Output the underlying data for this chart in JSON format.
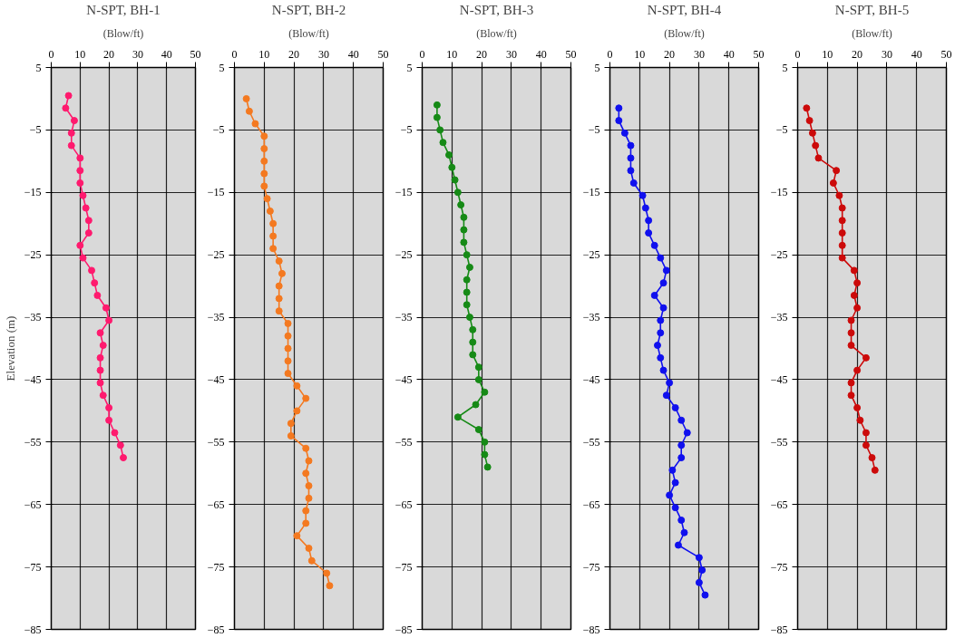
{
  "chart_data": [
    {
      "type": "line",
      "title": "N-SPT, BH-1",
      "subtitle": "(Blow/ft)",
      "ylabel": "Elevation (m)",
      "xlim": [
        0,
        50
      ],
      "xticks": [
        0,
        10,
        20,
        30,
        40,
        50
      ],
      "ylim": [
        -85,
        5
      ],
      "yticks": [
        5,
        -5,
        -15,
        -25,
        -35,
        -45,
        -55,
        -65,
        -75,
        -85
      ],
      "grid": true,
      "marker": "circle",
      "line_style": "solid",
      "series": [
        {
          "color": "#ff1a6e",
          "x": [
            6,
            5,
            8,
            7,
            7,
            10,
            10,
            10,
            11,
            12,
            13,
            13,
            10,
            11,
            14,
            15,
            16,
            19,
            20,
            17,
            18,
            17,
            17,
            17,
            18,
            20,
            20,
            22,
            24,
            25
          ],
          "values": [
            0.5,
            -1.5,
            -3.5,
            -5.5,
            -7.5,
            -9.5,
            -11.5,
            -13.5,
            -15.5,
            -17.5,
            -19.5,
            -21.5,
            -23.5,
            -25.5,
            -27.5,
            -29.5,
            -31.5,
            -33.5,
            -35.5,
            -37.5,
            -39.5,
            -41.5,
            -43.5,
            -45.5,
            -47.5,
            -49.5,
            -51.5,
            -53.5,
            -55.5,
            -57.5
          ]
        }
      ]
    },
    {
      "type": "line",
      "title": "N-SPT, BH-2",
      "subtitle": "(Blow/ft)",
      "xlim": [
        0,
        50
      ],
      "xticks": [
        0,
        10,
        20,
        30,
        40,
        50
      ],
      "ylim": [
        -85,
        5
      ],
      "yticks": [
        5,
        -5,
        -15,
        -25,
        -35,
        -45,
        -55,
        -65,
        -75,
        -85
      ],
      "grid": true,
      "marker": "circle",
      "line_style": "solid",
      "series": [
        {
          "color": "#f47920",
          "x": [
            4,
            5,
            7,
            10,
            10,
            10,
            10,
            10,
            11,
            12,
            13,
            13,
            13,
            15,
            16,
            15,
            15,
            15,
            18,
            18,
            18,
            18,
            18,
            21,
            24,
            21,
            19,
            19,
            24,
            25,
            24,
            25,
            25,
            24,
            24,
            21,
            25,
            26,
            31,
            32
          ],
          "values": [
            0,
            -2,
            -4,
            -6,
            -8,
            -10,
            -12,
            -14,
            -16,
            -18,
            -20,
            -22,
            -24,
            -26,
            -28,
            -30,
            -32,
            -34,
            -36,
            -38,
            -40,
            -42,
            -44,
            -46,
            -48,
            -50,
            -52,
            -54,
            -56,
            -58,
            -60,
            -62,
            -64,
            -66,
            -68,
            -70,
            -72,
            -74,
            -76,
            -78
          ]
        }
      ]
    },
    {
      "type": "line",
      "title": "N-SPT, BH-3",
      "subtitle": "(Blow/ft)",
      "xlim": [
        0,
        50
      ],
      "xticks": [
        0,
        10,
        20,
        30,
        40,
        50
      ],
      "ylim": [
        -85,
        5
      ],
      "yticks": [
        5,
        -5,
        -15,
        -25,
        -35,
        -45,
        -55,
        -65,
        -75,
        -85
      ],
      "grid": true,
      "marker": "circle",
      "line_style": "solid",
      "series": [
        {
          "color": "#168a16",
          "x": [
            5,
            5,
            6,
            7,
            9,
            10,
            11,
            12,
            13,
            14,
            14,
            14,
            15,
            16,
            15,
            15,
            15,
            16,
            17,
            17,
            17,
            19,
            19,
            21,
            18,
            12,
            19,
            21,
            21,
            22
          ],
          "values": [
            -1,
            -3,
            -5,
            -7,
            -9,
            -11,
            -13,
            -15,
            -17,
            -19,
            -21,
            -23,
            -25,
            -27,
            -29,
            -31,
            -33,
            -35,
            -37,
            -39,
            -41,
            -43,
            -45,
            -47,
            -49,
            -51,
            -53,
            -55,
            -57,
            -59
          ]
        }
      ]
    },
    {
      "type": "line",
      "title": "N-SPT, BH-4",
      "subtitle": "(Blow/ft)",
      "xlim": [
        0,
        50
      ],
      "xticks": [
        0,
        10,
        20,
        30,
        40,
        50
      ],
      "ylim": [
        -85,
        5
      ],
      "yticks": [
        5,
        -5,
        -15,
        -25,
        -35,
        -45,
        -55,
        -65,
        -75,
        -85
      ],
      "grid": true,
      "marker": "circle",
      "line_style": "solid",
      "series": [
        {
          "color": "#1010ee",
          "x": [
            3,
            3,
            5,
            7,
            7,
            7,
            8,
            11,
            12,
            13,
            13,
            15,
            17,
            19,
            18,
            15,
            18,
            17,
            17,
            16,
            17,
            18,
            20,
            19,
            22,
            24,
            26,
            24,
            24,
            21,
            22,
            20,
            22,
            24,
            25,
            23,
            30,
            31,
            30,
            32
          ],
          "values": [
            -1.5,
            -3.5,
            -5.5,
            -7.5,
            -9.5,
            -11.5,
            -13.5,
            -15.5,
            -17.5,
            -19.5,
            -21.5,
            -23.5,
            -25.5,
            -27.5,
            -29.5,
            -31.5,
            -33.5,
            -35.5,
            -37.5,
            -39.5,
            -41.5,
            -43.5,
            -45.5,
            -47.5,
            -49.5,
            -51.5,
            -53.5,
            -55.5,
            -57.5,
            -59.5,
            -61.5,
            -63.5,
            -65.5,
            -67.5,
            -69.5,
            -71.5,
            -73.5,
            -75.5,
            -77.5,
            -79.5
          ]
        }
      ]
    },
    {
      "type": "line",
      "title": "N-SPT, BH-5",
      "subtitle": "(Blow/ft)",
      "xlim": [
        0,
        50
      ],
      "xticks": [
        0,
        10,
        20,
        30,
        40,
        50
      ],
      "ylim": [
        -85,
        5
      ],
      "yticks": [
        5,
        -5,
        -15,
        -25,
        -35,
        -45,
        -55,
        -65,
        -75,
        -85
      ],
      "grid": true,
      "marker": "circle",
      "line_style": "solid",
      "series": [
        {
          "color": "#cc0a0a",
          "x": [
            3,
            4,
            5,
            6,
            7,
            13,
            12,
            14,
            15,
            15,
            15,
            15,
            15,
            19,
            20,
            19,
            20,
            18,
            18,
            18,
            23,
            20,
            18,
            18,
            20,
            21,
            23,
            23,
            25,
            26
          ],
          "values": [
            -1.5,
            -3.5,
            -5.5,
            -7.5,
            -9.5,
            -11.5,
            -13.5,
            -15.5,
            -17.5,
            -19.5,
            -21.5,
            -23.5,
            -25.5,
            -27.5,
            -29.5,
            -31.5,
            -33.5,
            -35.5,
            -37.5,
            -39.5,
            -41.5,
            -43.5,
            -45.5,
            -47.5,
            -49.5,
            -51.5,
            -53.5,
            -55.5,
            -57.5,
            -59.5
          ]
        }
      ]
    }
  ]
}
